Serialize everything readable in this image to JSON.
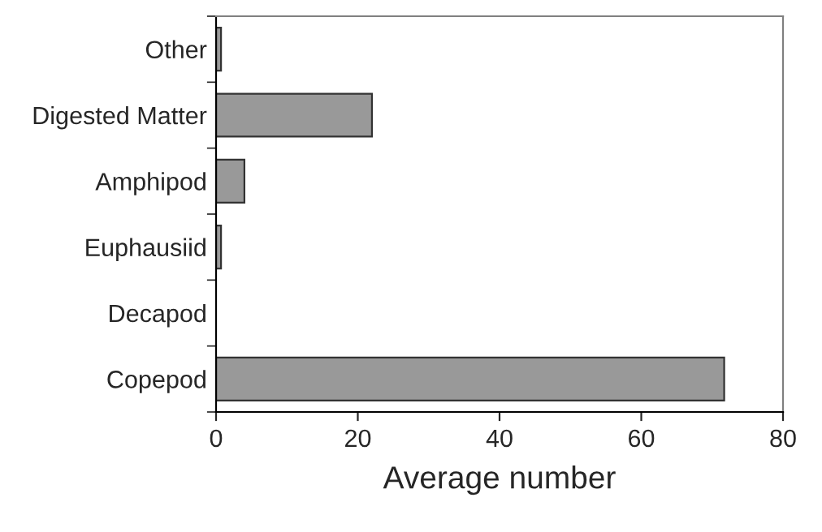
{
  "chart_data": {
    "type": "bar",
    "orientation": "horizontal",
    "xlabel": "Average number",
    "categories": [
      "Other",
      "Digested Matter",
      "Amphipod",
      "Euphausiid",
      "Decapod",
      "Copepod"
    ],
    "values": [
      0.7,
      22.0,
      4.0,
      0.7,
      0,
      71.7
    ],
    "color": "#999999",
    "xlim": [
      0,
      80
    ],
    "xticks": [
      0,
      20,
      40,
      60,
      80
    ],
    "grid": false,
    "legend": false
  }
}
